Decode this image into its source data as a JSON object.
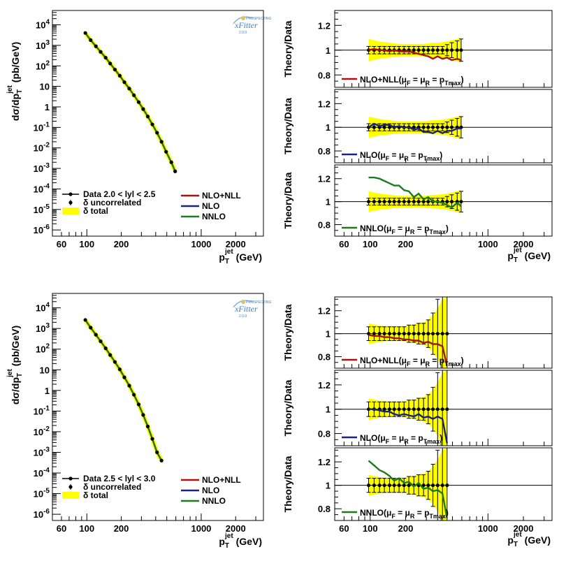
{
  "logo": {
    "brand": "PROSPECTING",
    "name": "xFitter",
    "version": "2.0.0"
  },
  "axes": {
    "xlabel_main": "p",
    "xlabel_sub": "T",
    "xlabel_sup": "jet",
    "xlabel_unit": "(GeV)",
    "ylabel_main": "dσ/dp",
    "ylabel_sub": "T",
    "ylabel_sup": "jet",
    "ylabel_unit": "(pb/GeV)",
    "ratio_ylabel": "Theory/Data"
  },
  "chart_data": [
    {
      "type": "line",
      "id": "xsec-top",
      "xlog": true,
      "ylog": true,
      "xlim": [
        50,
        3500
      ],
      "ylim": [
        5e-07,
        50000.0
      ],
      "xticks": [
        "60",
        "100",
        "200",
        "1000",
        "2000"
      ],
      "yticks": [
        "10^-6",
        "10^-5",
        "10^-4",
        "10^-3",
        "10^-2",
        "10^-1",
        "1",
        "10",
        "10^2",
        "10^3",
        "10^4"
      ],
      "legend": {
        "data_label": "Data 2.0 < lyl < 2.5",
        "uncorr_label": "δ uncorrelated",
        "total_label": "δ total",
        "theory": [
          "NLO+NLL",
          "NLO",
          "NNLO"
        ]
      },
      "x": [
        97,
        108,
        120,
        132,
        146,
        160,
        176,
        194,
        213,
        235,
        258,
        284,
        311,
        341,
        374,
        411,
        450,
        493,
        548,
        592
      ],
      "y": [
        4000,
        1800,
        900,
        480,
        250,
        130,
        66,
        33,
        16,
        7.8,
        3.7,
        1.7,
        0.78,
        0.34,
        0.14,
        0.055,
        0.02,
        0.0065,
        0.002,
        0.00072
      ]
    },
    {
      "type": "line",
      "id": "xsec-bottom",
      "xlog": true,
      "ylog": true,
      "xlim": [
        50,
        3500
      ],
      "ylim": [
        5e-07,
        50000.0
      ],
      "xticks": [
        "60",
        "100",
        "200",
        "1000",
        "2000"
      ],
      "yticks": [
        "10^-6",
        "10^-5",
        "10^-4",
        "10^-3",
        "10^-2",
        "10^-1",
        "1",
        "10",
        "10^2",
        "10^3",
        "10^4"
      ],
      "legend": {
        "data_label": "Data 2.5 < lyl < 3.0",
        "uncorr_label": "δ uncorrelated",
        "total_label": "δ total",
        "theory": [
          "NLO+NLL",
          "NLO",
          "NNLO"
        ]
      },
      "x": [
        97,
        108,
        120,
        132,
        146,
        160,
        176,
        194,
        213,
        235,
        258,
        284,
        311,
        341,
        374,
        411,
        450
      ],
      "y": [
        2600,
        1100,
        500,
        240,
        110,
        52,
        24,
        10.5,
        4.3,
        1.7,
        0.62,
        0.21,
        0.065,
        0.018,
        0.0045,
        0.001,
        0.0004
      ]
    },
    {
      "type": "line",
      "id": "ratio-top-nllnll",
      "xlim": [
        50,
        3500
      ],
      "ylim": [
        0.7,
        1.32
      ],
      "yticks": [
        "0.8",
        "1",
        "1.2"
      ],
      "xticks": [
        "60",
        "100",
        "200",
        "1000",
        "2000"
      ],
      "legend_prefix": "NLO+NLL(",
      "mu_label": "μ",
      "mu_f": "F",
      "mu_r": "R",
      "eq": "=",
      "p": "p",
      "pmax": "Tmax",
      "legend_suffix": ")",
      "color": "#aa1111",
      "x": [
        97,
        108,
        120,
        132,
        146,
        160,
        176,
        194,
        213,
        235,
        258,
        284,
        311,
        341,
        374,
        411,
        450,
        493,
        548,
        592
      ],
      "ratio": [
        1.0,
        1.01,
        1.0,
        1.0,
        0.99,
        1.0,
        0.99,
        0.99,
        0.99,
        0.98,
        0.97,
        0.96,
        0.95,
        0.93,
        0.95,
        0.93,
        0.94,
        0.92,
        0.93,
        0.92
      ],
      "err": [
        0.01,
        0.01,
        0.01,
        0.01,
        0.01,
        0.01,
        0.01,
        0.01,
        0.01,
        0.01,
        0.01,
        0.01,
        0.01,
        0.01,
        0.01,
        0.01,
        0.015,
        0.02,
        0.025,
        0.03
      ],
      "total_err": [
        0.09,
        0.08,
        0.07,
        0.065,
        0.06,
        0.055,
        0.05,
        0.05,
        0.05,
        0.05,
        0.05,
        0.05,
        0.055,
        0.06,
        0.06,
        0.065,
        0.07,
        0.08,
        0.09,
        0.1
      ]
    },
    {
      "type": "line",
      "id": "ratio-top-nlo",
      "xlim": [
        50,
        3500
      ],
      "ylim": [
        0.7,
        1.32
      ],
      "yticks": [
        "0.8",
        "1",
        "1.2"
      ],
      "xticks": [
        "60",
        "100",
        "200",
        "1000",
        "2000"
      ],
      "legend_prefix": "NLO(",
      "mu_label": "μ",
      "mu_f": "F",
      "mu_r": "R",
      "eq": "=",
      "p": "p",
      "pmax": "Tmax",
      "legend_suffix": ")",
      "color": "#1a237e",
      "x": [
        97,
        108,
        120,
        132,
        146,
        160,
        176,
        194,
        213,
        235,
        258,
        284,
        311,
        341,
        374,
        411,
        450,
        493,
        548,
        592
      ],
      "ratio": [
        1.0,
        1.03,
        1.01,
        1.02,
        1.02,
        1.0,
        1.01,
        1.0,
        1.0,
        0.98,
        0.99,
        0.96,
        0.96,
        0.95,
        0.97,
        0.95,
        0.97,
        0.97,
        0.99,
        0.99
      ],
      "err": [
        0.01,
        0.01,
        0.01,
        0.01,
        0.01,
        0.01,
        0.01,
        0.01,
        0.01,
        0.01,
        0.01,
        0.01,
        0.01,
        0.01,
        0.01,
        0.01,
        0.015,
        0.02,
        0.025,
        0.03
      ],
      "total_err": [
        0.09,
        0.08,
        0.07,
        0.065,
        0.06,
        0.055,
        0.05,
        0.05,
        0.05,
        0.05,
        0.05,
        0.05,
        0.055,
        0.06,
        0.06,
        0.065,
        0.07,
        0.08,
        0.09,
        0.1
      ]
    },
    {
      "type": "line",
      "id": "ratio-top-nnlo",
      "xlim": [
        50,
        3500
      ],
      "ylim": [
        0.7,
        1.32
      ],
      "yticks": [
        "0.8",
        "1",
        "1.2"
      ],
      "xticks": [
        "60",
        "100",
        "200",
        "1000",
        "2000"
      ],
      "legend_prefix": "NNLO(",
      "mu_label": "μ",
      "mu_f": "F",
      "mu_r": "R",
      "eq": "=",
      "p": "p",
      "pmax": "Tmax",
      "legend_suffix": ")",
      "color": "#1b7a1b",
      "x": [
        97,
        108,
        120,
        132,
        146,
        160,
        176,
        194,
        213,
        235,
        258,
        284,
        311,
        341,
        374,
        411,
        450,
        493,
        548,
        592
      ],
      "ratio": [
        1.21,
        1.21,
        1.2,
        1.18,
        1.16,
        1.14,
        1.14,
        1.1,
        1.09,
        1.04,
        1.07,
        1.02,
        1.04,
        1.0,
        1.0,
        0.99,
        0.97,
        0.95,
        0.99,
        0.96
      ],
      "err": [
        0.01,
        0.01,
        0.01,
        0.01,
        0.01,
        0.01,
        0.01,
        0.01,
        0.01,
        0.01,
        0.01,
        0.01,
        0.01,
        0.01,
        0.01,
        0.01,
        0.015,
        0.02,
        0.025,
        0.03
      ],
      "total_err": [
        0.09,
        0.08,
        0.07,
        0.065,
        0.06,
        0.055,
        0.05,
        0.05,
        0.05,
        0.05,
        0.05,
        0.05,
        0.055,
        0.06,
        0.06,
        0.065,
        0.07,
        0.08,
        0.09,
        0.1
      ]
    },
    {
      "type": "line",
      "id": "ratio-bottom-nllnll",
      "xlim": [
        50,
        3500
      ],
      "ylim": [
        0.7,
        1.32
      ],
      "yticks": [
        "0.8",
        "1",
        "1.2"
      ],
      "xticks": [
        "60",
        "100",
        "200",
        "1000",
        "2000"
      ],
      "legend_prefix": "NLO+NLL(",
      "mu_label": "μ",
      "mu_f": "F",
      "mu_r": "R",
      "eq": "=",
      "p": "p",
      "pmax": "Tmax",
      "legend_suffix": ")",
      "color": "#aa1111",
      "x": [
        97,
        108,
        120,
        132,
        146,
        160,
        176,
        194,
        213,
        235,
        258,
        284,
        311,
        341,
        374,
        411,
        450
      ],
      "ratio": [
        0.99,
        0.98,
        0.98,
        0.97,
        0.97,
        0.96,
        0.96,
        0.95,
        0.95,
        0.94,
        0.94,
        0.92,
        0.93,
        0.91,
        0.91,
        0.89,
        0.72
      ],
      "err": [
        0.02,
        0.02,
        0.02,
        0.02,
        0.02,
        0.02,
        0.02,
        0.02,
        0.025,
        0.025,
        0.03,
        0.03,
        0.04,
        0.06,
        0.1,
        0.16,
        0.22
      ],
      "total_err": [
        0.09,
        0.08,
        0.07,
        0.065,
        0.06,
        0.06,
        0.06,
        0.065,
        0.07,
        0.08,
        0.09,
        0.1,
        0.12,
        0.16,
        0.22,
        0.3,
        0.4
      ]
    },
    {
      "type": "line",
      "id": "ratio-bottom-nlo",
      "xlim": [
        50,
        3500
      ],
      "ylim": [
        0.7,
        1.32
      ],
      "yticks": [
        "0.8",
        "1",
        "1.2"
      ],
      "xticks": [
        "60",
        "100",
        "200",
        "1000",
        "2000"
      ],
      "legend_prefix": "NLO(",
      "mu_label": "μ",
      "mu_f": "F",
      "mu_r": "R",
      "eq": "=",
      "p": "p",
      "pmax": "Tmax",
      "legend_suffix": ")",
      "color": "#1a237e",
      "x": [
        97,
        108,
        120,
        132,
        146,
        160,
        176,
        194,
        213,
        235,
        258,
        284,
        311,
        341,
        374,
        411,
        450
      ],
      "ratio": [
        1.0,
        1.0,
        0.99,
        0.98,
        0.98,
        0.96,
        0.95,
        0.96,
        0.95,
        0.94,
        0.96,
        0.93,
        0.94,
        0.92,
        0.94,
        0.92,
        0.72
      ],
      "err": [
        0.02,
        0.02,
        0.02,
        0.02,
        0.02,
        0.02,
        0.02,
        0.02,
        0.025,
        0.025,
        0.03,
        0.03,
        0.04,
        0.06,
        0.1,
        0.16,
        0.22
      ],
      "total_err": [
        0.09,
        0.08,
        0.07,
        0.065,
        0.06,
        0.06,
        0.06,
        0.065,
        0.07,
        0.08,
        0.09,
        0.1,
        0.12,
        0.16,
        0.22,
        0.3,
        0.4
      ]
    },
    {
      "type": "line",
      "id": "ratio-bottom-nnlo",
      "xlim": [
        50,
        3500
      ],
      "ylim": [
        0.7,
        1.32
      ],
      "yticks": [
        "0.8",
        "1",
        "1.2"
      ],
      "xticks": [
        "60",
        "100",
        "200",
        "1000",
        "2000"
      ],
      "legend_prefix": "NNLO(",
      "mu_label": "μ",
      "mu_f": "F",
      "mu_r": "R",
      "eq": "=",
      "p": "p",
      "pmax": "Tmax",
      "legend_suffix": ")",
      "color": "#1b7a1b",
      "x": [
        97,
        108,
        120,
        132,
        146,
        160,
        176,
        194,
        213,
        235,
        258,
        284,
        311,
        341,
        374,
        411,
        450
      ],
      "ratio": [
        1.21,
        1.17,
        1.13,
        1.11,
        1.08,
        1.04,
        1.06,
        1.02,
        1.03,
        0.99,
        1.02,
        0.97,
        0.98,
        0.95,
        0.96,
        0.93,
        0.72
      ],
      "err": [
        0.02,
        0.02,
        0.02,
        0.02,
        0.02,
        0.02,
        0.02,
        0.02,
        0.025,
        0.025,
        0.03,
        0.03,
        0.04,
        0.06,
        0.1,
        0.16,
        0.22
      ],
      "total_err": [
        0.09,
        0.08,
        0.07,
        0.065,
        0.06,
        0.06,
        0.06,
        0.065,
        0.07,
        0.08,
        0.09,
        0.1,
        0.12,
        0.16,
        0.22,
        0.3,
        0.4
      ]
    }
  ],
  "colors": {
    "nllnll": "#aa1111",
    "nlo": "#1a237e",
    "nnlo": "#1b7a1b",
    "band": "#ffff00"
  }
}
